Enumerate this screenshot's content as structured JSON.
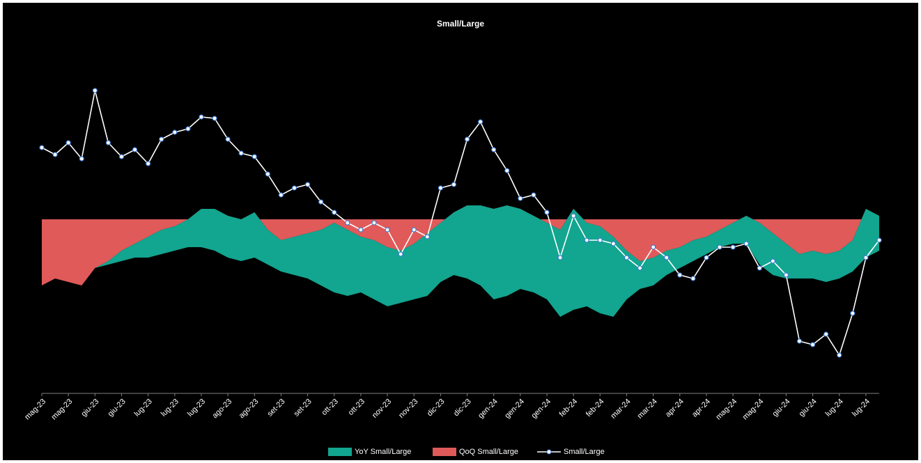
{
  "chart_data": {
    "type": "stacked_area_line",
    "title": "Small/Large",
    "stacked": true,
    "ylim": [
      -5,
      5
    ],
    "categories": [
      "mag-23",
      null,
      "mag-23",
      null,
      "giu-23",
      null,
      "giu-23",
      null,
      "lug-23",
      null,
      "lug-23",
      null,
      "lug-23",
      null,
      "ago-23",
      null,
      "ago-23",
      null,
      "set-23",
      null,
      "set-23",
      null,
      "ott-23",
      null,
      "ott-23",
      null,
      "nov-23",
      null,
      "nov-23",
      null,
      "dic-23",
      null,
      "dic-23",
      null,
      "gen-24",
      null,
      "gen-24",
      null,
      "gen-24",
      null,
      "feb-24",
      null,
      "feb-24",
      null,
      "mar-24",
      null,
      "mar-24",
      null,
      "apr-24",
      null,
      "apr-24",
      null,
      "mag-24",
      null,
      "mag-24",
      null,
      "giu-24",
      null,
      "giu-24",
      null,
      "lug-24",
      null,
      "lug-24",
      null
    ],
    "series": [
      {
        "name": "YoY Small/Large",
        "kind": "area",
        "color": "#12a58f",
        "values": [
          0,
          0,
          0,
          0,
          0,
          -0.1,
          -0.3,
          -0.4,
          -0.6,
          -0.7,
          -0.7,
          -0.8,
          -1.1,
          -1.2,
          -1.2,
          -1.2,
          -1.3,
          -1.0,
          -0.9,
          -1.1,
          -1.3,
          -1.6,
          -2.0,
          -1.9,
          -1.6,
          -1.7,
          -1.7,
          -1.5,
          -1.6,
          -1.8,
          -1.7,
          -1.8,
          -2.1,
          -2.3,
          -2.6,
          -2.6,
          -2.3,
          -2.2,
          -2.2,
          -2.5,
          -2.9,
          -2.4,
          -2.5,
          -2.3,
          -1.4,
          -0.8,
          -0.8,
          -0.7,
          -0.6,
          -0.6,
          -0.5,
          -0.5,
          -0.6,
          -0.8,
          -1.2,
          -1.2,
          -1.0,
          -0.7,
          -0.8,
          -0.8,
          -0.8,
          -0.9,
          -1.4,
          -1.0
        ]
      },
      {
        "name": "QoQ Small/Large",
        "kind": "area",
        "color": "#e05a5a",
        "values": [
          -1.9,
          -1.7,
          -1.8,
          -1.9,
          -1.4,
          -1.2,
          -0.9,
          -0.7,
          -0.5,
          -0.3,
          -0.2,
          0,
          0.3,
          0.3,
          0.1,
          0,
          0.2,
          -0.3,
          -0.6,
          -0.5,
          -0.4,
          -0.3,
          -0.1,
          -0.3,
          -0.5,
          -0.6,
          -0.8,
          -0.9,
          -0.7,
          -0.4,
          -0.1,
          0.2,
          0.4,
          0.4,
          0.3,
          0.4,
          0.3,
          0.1,
          -0.1,
          -0.3,
          0.3,
          -0.1,
          -0.2,
          -0.5,
          -0.9,
          -1.2,
          -1.1,
          -0.9,
          -0.8,
          -0.6,
          -0.5,
          -0.3,
          -0.1,
          0.1,
          -0.1,
          -0.4,
          -0.7,
          -1.0,
          -0.9,
          -1.0,
          -0.9,
          -0.6,
          0.3,
          0.1
        ]
      },
      {
        "name": "Small/Large",
        "kind": "line",
        "color": "#ffffff",
        "marker_color": "#3a7bd5",
        "values": [
          2.06,
          1.86,
          2.2,
          1.74,
          3.7,
          2.2,
          1.8,
          2.0,
          1.6,
          2.3,
          2.5,
          2.6,
          2.94,
          2.9,
          2.3,
          1.9,
          1.8,
          1.3,
          0.7,
          0.9,
          1.0,
          0.5,
          0.2,
          -0.1,
          -0.3,
          -0.1,
          -0.3,
          -1.0,
          -0.3,
          -0.5,
          0.9,
          1.0,
          2.3,
          2.8,
          2.0,
          1.4,
          0.6,
          0.7,
          0.2,
          -1.1,
          0.1,
          -0.6,
          -0.6,
          -0.7,
          -1.1,
          -1.4,
          -0.8,
          -1.1,
          -1.6,
          -1.7,
          -1.1,
          -0.8,
          -0.8,
          -0.7,
          -1.4,
          -1.2,
          -1.6,
          -3.5,
          -3.6,
          -3.3,
          -3.9,
          -2.7,
          -1.1,
          -0.6
        ]
      }
    ]
  }
}
